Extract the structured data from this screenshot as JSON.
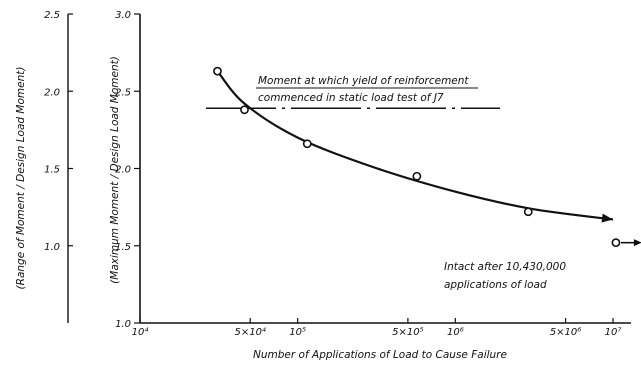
{
  "chart_data": {
    "type": "scatter",
    "xscale": "log",
    "xlim": [
      10000,
      13000000
    ],
    "xlabel": "Number of Applications of Load to Cause Failure",
    "x_tick_labels": [
      {
        "x": 10000,
        "label": "10⁴"
      },
      {
        "x": 50000,
        "label": "5×10⁴"
      },
      {
        "x": 100000,
        "label": "10⁵"
      },
      {
        "x": 500000,
        "label": "5×10⁵"
      },
      {
        "x": 1000000,
        "label": "10⁶"
      },
      {
        "x": 5000000,
        "label": "5×10⁶"
      },
      {
        "x": 10000000,
        "label": "10⁷"
      }
    ],
    "ylim_inner": [
      1.0,
      3.0
    ],
    "ylabel_inner": "(Maximum Moment / Design Load Moment)",
    "y_ticks_inner": [
      1.0,
      1.5,
      2.0,
      2.5,
      3.0
    ],
    "ylim_outer": [
      0.5,
      2.5
    ],
    "ylabel_outer": "(Range of Moment / Design Load Moment)",
    "y_ticks_outer": [
      1.0,
      1.5,
      2.0,
      2.5
    ],
    "points": [
      {
        "x": 31000,
        "y": 2.63
      },
      {
        "x": 46000,
        "y": 2.38
      },
      {
        "x": 115000,
        "y": 2.16
      },
      {
        "x": 570000,
        "y": 1.95
      },
      {
        "x": 2900000,
        "y": 1.72
      },
      {
        "x": 10430000,
        "y": 1.52,
        "runout": true
      }
    ],
    "curve": [
      {
        "x": 31000,
        "y": 2.63
      },
      {
        "x": 46000,
        "y": 2.42
      },
      {
        "x": 100000,
        "y": 2.2
      },
      {
        "x": 300000,
        "y": 2.01
      },
      {
        "x": 1000000,
        "y": 1.85
      },
      {
        "x": 3000000,
        "y": 1.74
      },
      {
        "x": 10000000,
        "y": 1.67
      }
    ],
    "yield_line_y": 2.39,
    "annotations": [
      "Moment at which yield of reinforcement commenced in static load test of J7",
      "Intact after 10,430,000 applications of load"
    ]
  }
}
